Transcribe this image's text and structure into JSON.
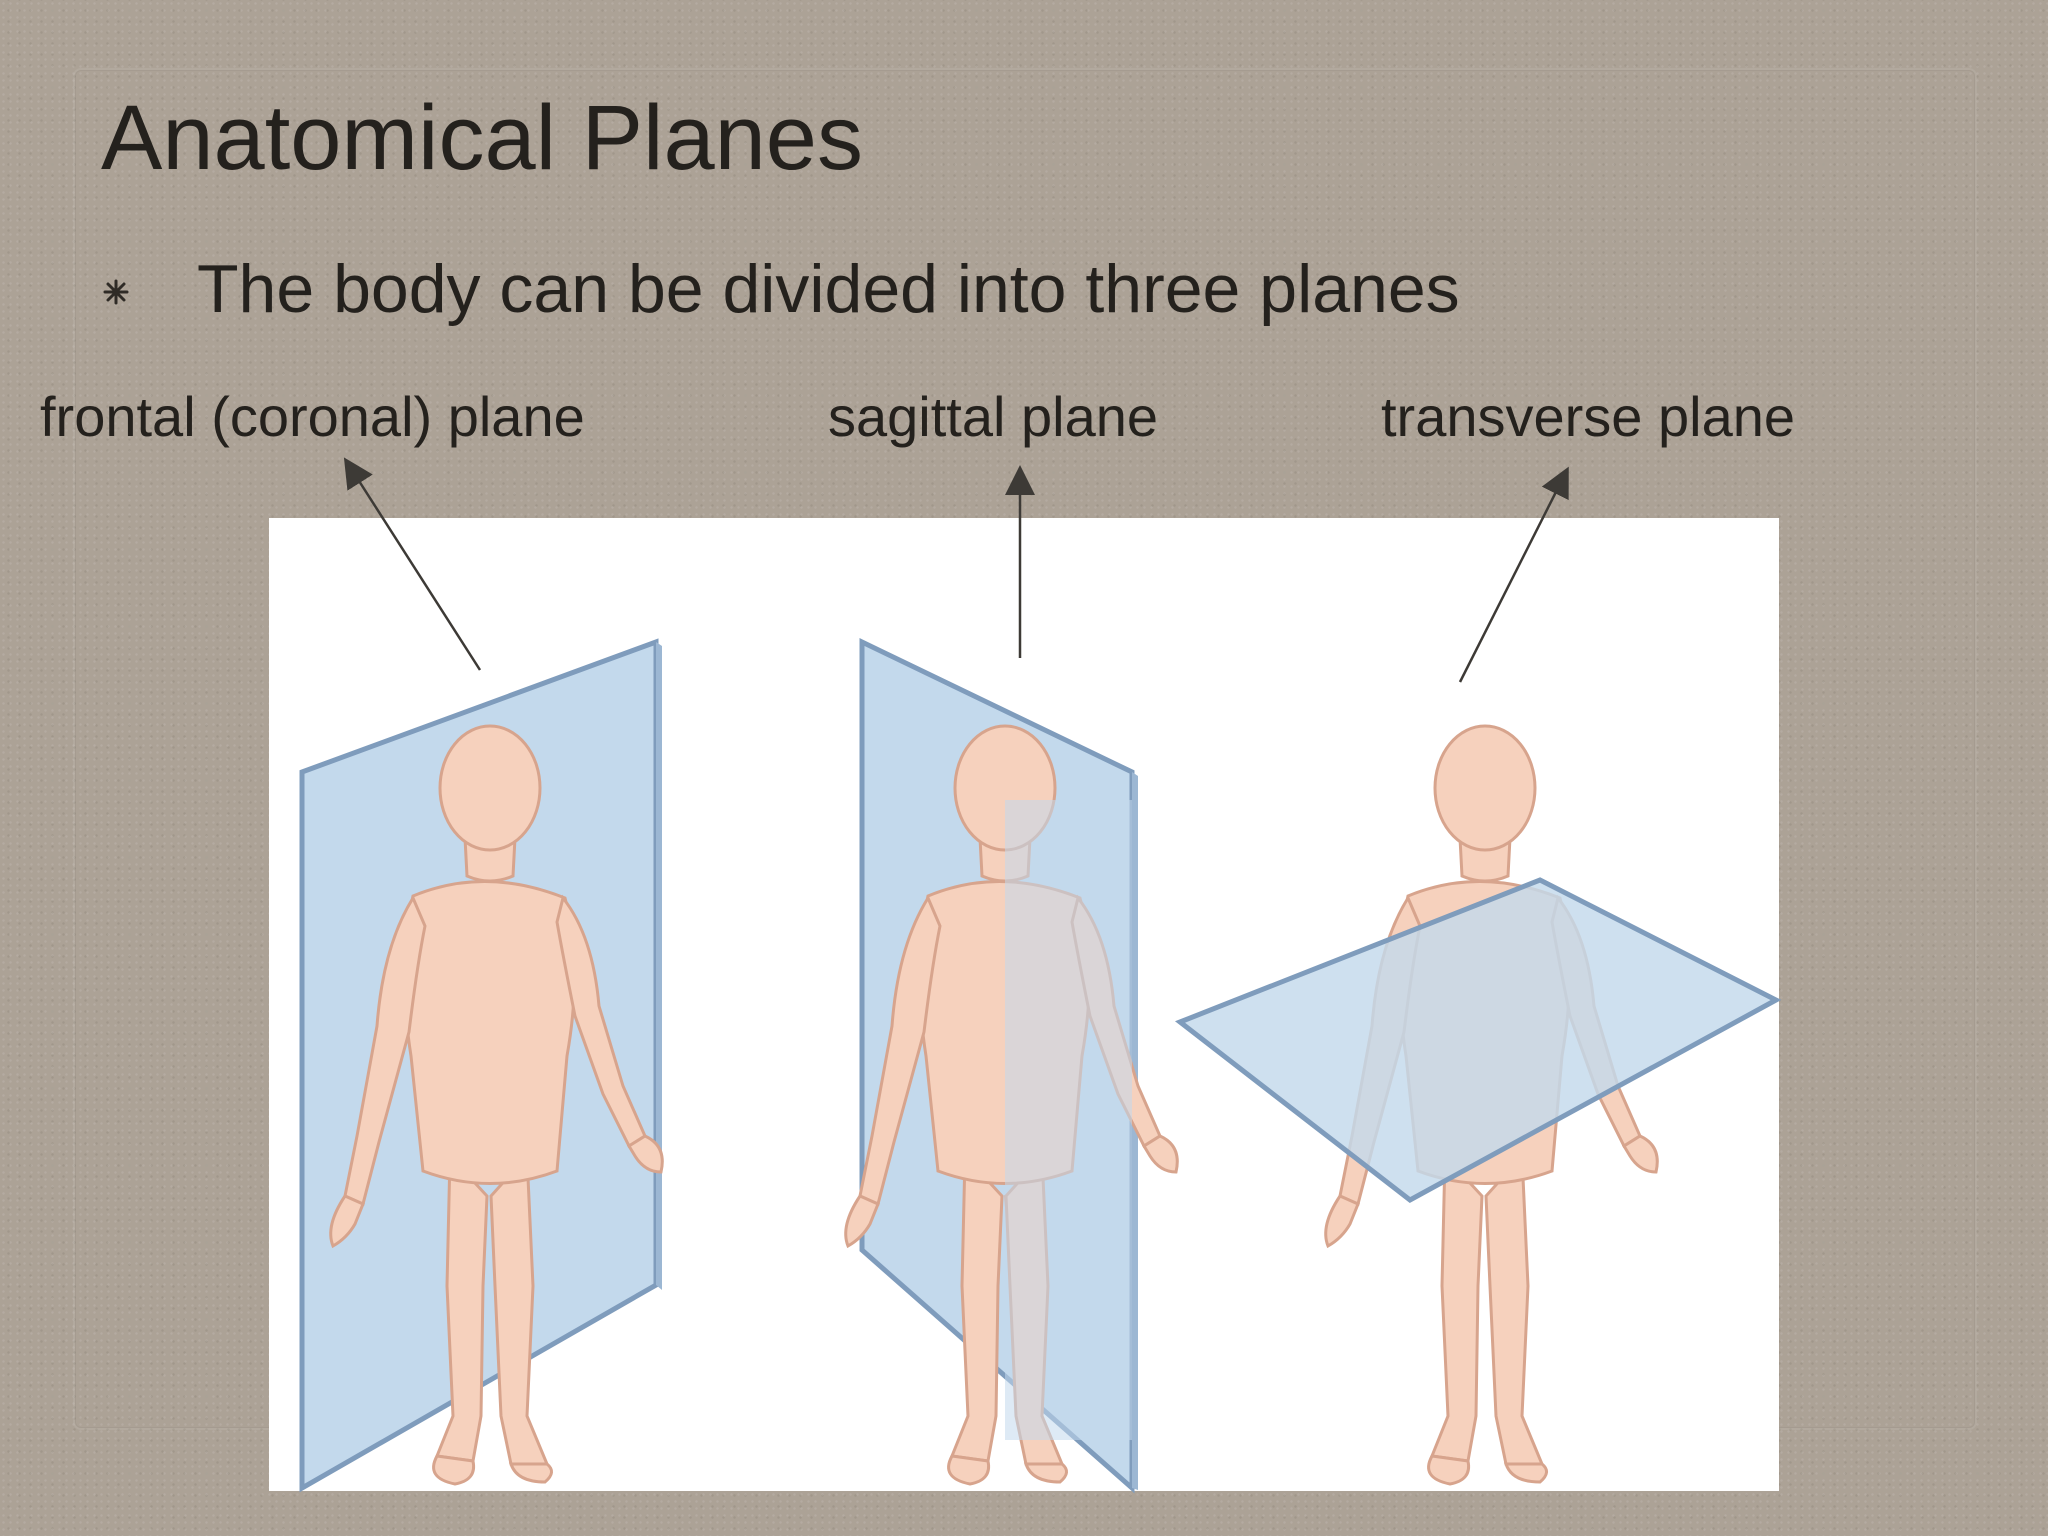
{
  "slide": {
    "title": "Anatomical Planes",
    "bullet_icon": "asterisk-bullet-icon",
    "bullet_text": "The body can be divided into three planes"
  },
  "planes": [
    {
      "label": "frontal (coronal) plane"
    },
    {
      "label": "sagittal plane"
    },
    {
      "label": "transverse plane"
    }
  ],
  "colors": {
    "background": "#aca296",
    "text": "#24211d",
    "plane_fill": "#c3d9ec",
    "plane_edge": "#7f9cbc",
    "skin": "#f6d1bd",
    "skin_outline": "#d7a48d"
  }
}
